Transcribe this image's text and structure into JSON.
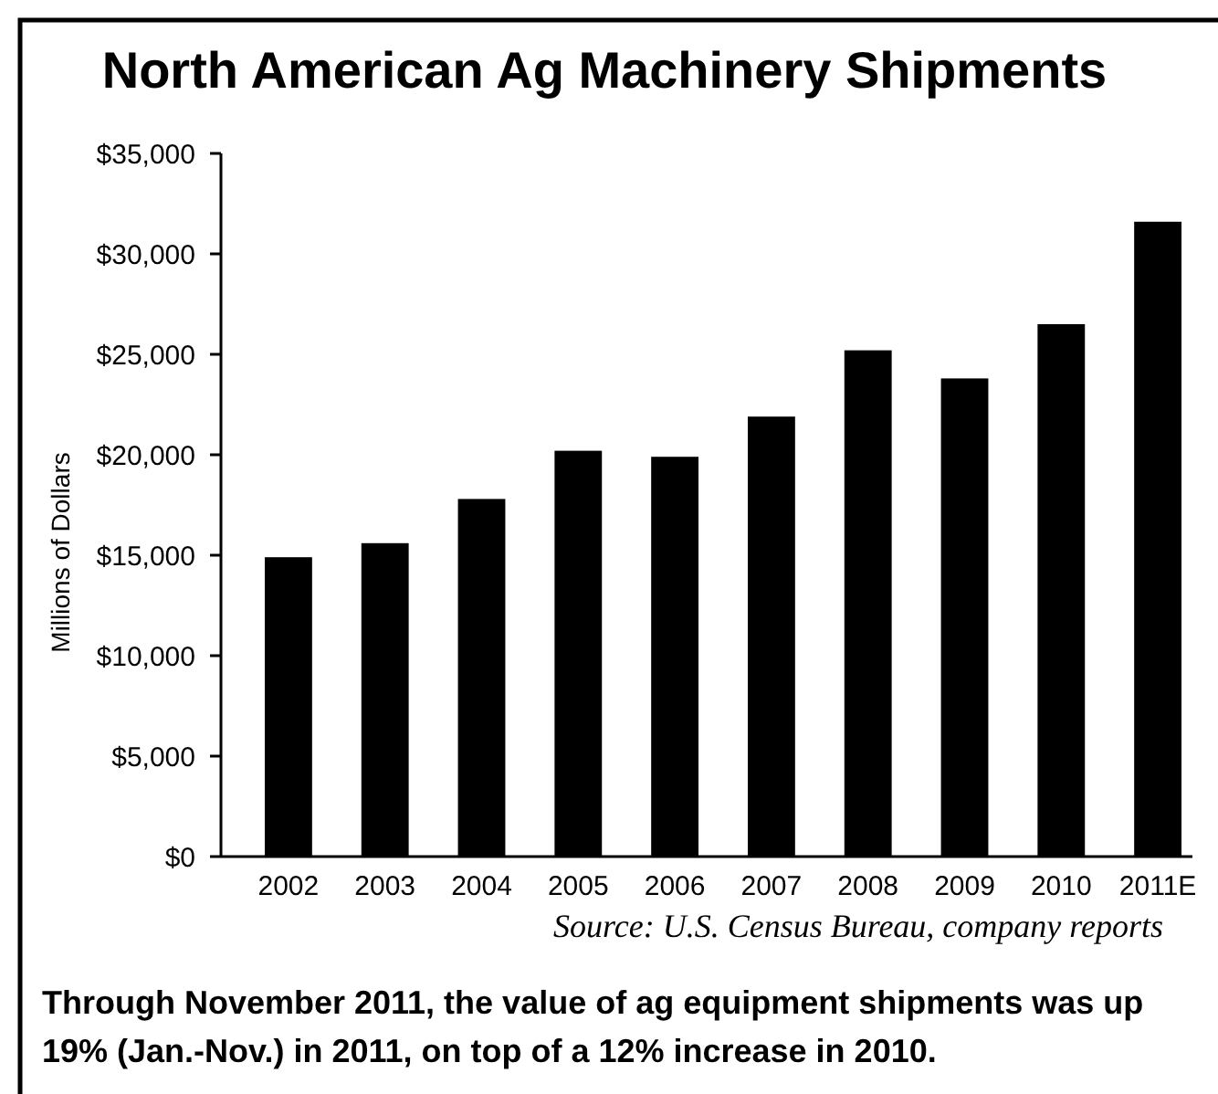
{
  "chart_data": {
    "type": "bar",
    "title": "North American Ag Machinery Shipments",
    "ylabel": "Millions of Dollars",
    "categories": [
      "2002",
      "2003",
      "2004",
      "2005",
      "2006",
      "2007",
      "2008",
      "2009",
      "2010",
      "2011E"
    ],
    "values": [
      14900,
      15600,
      17800,
      20200,
      19900,
      21900,
      25200,
      23800,
      26500,
      31600
    ],
    "color": "#000000",
    "ylim": [
      0,
      35000
    ],
    "yticks": [
      {
        "value": 0,
        "label": "$0"
      },
      {
        "value": 5000,
        "label": "$5,000"
      },
      {
        "value": 10000,
        "label": "$10,000"
      },
      {
        "value": 15000,
        "label": "$15,000"
      },
      {
        "value": 20000,
        "label": "$20,000"
      },
      {
        "value": 25000,
        "label": "$25,000"
      },
      {
        "value": 30000,
        "label": "$30,000"
      },
      {
        "value": 35000,
        "label": "$35,000"
      }
    ],
    "annotations": [
      "Source: U.S. Census Bureau, company reports",
      "Through November 2011, the value of ag equipment shipments was up 19% (Jan.-Nov.) in 2011, on top of a 12% increase in 2010."
    ]
  }
}
